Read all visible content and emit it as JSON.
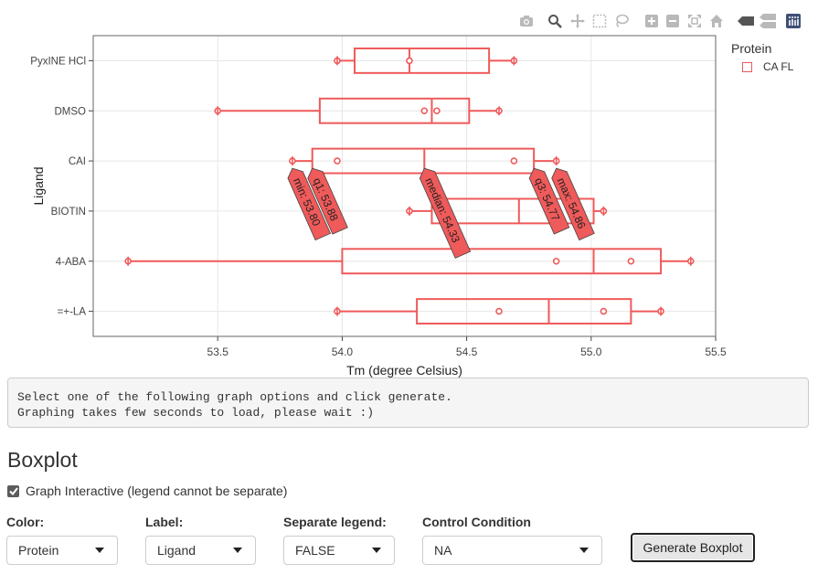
{
  "toolbar": {
    "icons": [
      "camera-icon",
      "zoom-icon",
      "pan-icon",
      "box-select-icon",
      "lasso-select-icon",
      "zoom-in-icon",
      "zoom-out-icon",
      "autoscale-icon",
      "reset-axes-icon",
      "spike-lines-icon",
      "compare-hover-icon",
      "plotly-logo-icon"
    ]
  },
  "legend": {
    "title": "Protein",
    "item": "CA FL"
  },
  "chart_data": {
    "type": "box",
    "orientation": "horizontal",
    "xlabel": "Tm (degree Celsius)",
    "ylabel": "Ligand",
    "xlim": [
      53.0,
      55.5
    ],
    "xticks": [
      "53.5",
      "54.0",
      "54.5",
      "55.0",
      "55.5"
    ],
    "xtick_values": [
      53.5,
      54.0,
      54.5,
      55.0,
      55.5
    ],
    "color": "#ef5a5a",
    "grid": true,
    "categories": [
      "PyxINE HCl",
      "DMSO",
      "CAI",
      "BIOTIN",
      "4-ABA",
      "=+-LA"
    ],
    "boxes": [
      {
        "label": "PyxINE HCl",
        "min": 53.98,
        "q1": 54.05,
        "median": 54.27,
        "q3": 54.59,
        "max": 54.69,
        "points": [
          53.98,
          54.27,
          54.69
        ]
      },
      {
        "label": "DMSO",
        "min": 53.5,
        "q1": 53.91,
        "median": 54.36,
        "q3": 54.51,
        "max": 54.63,
        "points": [
          53.5,
          54.33,
          54.38,
          54.63
        ]
      },
      {
        "label": "CAI",
        "min": 53.8,
        "q1": 53.88,
        "median": 54.33,
        "q3": 54.77,
        "max": 54.86,
        "points": [
          53.8,
          53.98,
          54.69,
          54.86
        ]
      },
      {
        "label": "BIOTIN",
        "min": 54.27,
        "q1": 54.36,
        "median": 54.71,
        "q3": 55.01,
        "max": 55.05,
        "points": [
          54.27,
          55.05
        ]
      },
      {
        "label": "4-ABA",
        "min": 53.14,
        "q1": 54.0,
        "median": 55.01,
        "q3": 55.28,
        "max": 55.4,
        "points": [
          53.14,
          54.86,
          55.16,
          55.4
        ]
      },
      {
        "label": "=+-LA",
        "min": 53.98,
        "q1": 54.3,
        "median": 54.83,
        "q3": 55.16,
        "max": 55.28,
        "points": [
          53.98,
          54.63,
          55.05,
          55.28
        ]
      }
    ],
    "hover": {
      "category": "CAI",
      "labels": [
        {
          "text": "min: 53.80",
          "value": 53.8
        },
        {
          "text": "q1: 53.88",
          "value": 53.88
        },
        {
          "text": "median: 54.33",
          "value": 54.33
        },
        {
          "text": "q3: 54.77",
          "value": 54.77
        },
        {
          "text": "max: 54.86",
          "value": 54.86
        }
      ]
    }
  },
  "message": {
    "line1": "Select one of the following graph options and click generate.",
    "line2": "Graphing takes few seconds to load, please wait :)"
  },
  "section": {
    "title": "Boxplot"
  },
  "interactive_checkbox": {
    "label": "Graph Interactive (legend cannot be separate)",
    "checked": true
  },
  "controls": {
    "color": {
      "label": "Color:",
      "value": "Protein"
    },
    "label": {
      "label": "Label:",
      "value": "Ligand"
    },
    "separate_legend": {
      "label": "Separate legend:",
      "value": "FALSE"
    },
    "control_condition": {
      "label": "Control Condition",
      "value": "NA"
    }
  },
  "generate_button": {
    "label": "Generate Boxplot"
  }
}
